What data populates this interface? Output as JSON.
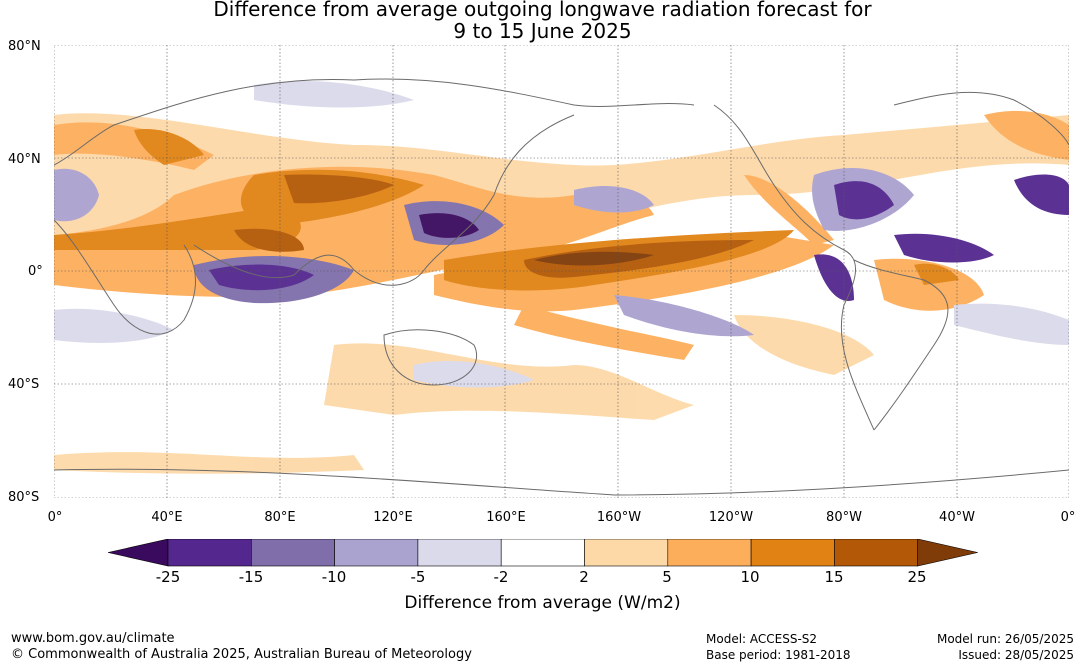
{
  "title": {
    "line1": "Difference from average outgoing longwave radiation forecast for",
    "line2": "9 to 15 June 2025"
  },
  "lat_labels": [
    "80°N",
    "40°N",
    "0°",
    "40°S",
    "80°S"
  ],
  "lon_labels": [
    "0°",
    "40°E",
    "80°E",
    "120°E",
    "160°E",
    "160°W",
    "120°W",
    "80°W",
    "40°W",
    "0°"
  ],
  "colorbar": {
    "ticks": [
      "-25",
      "-15",
      "-10",
      "-5",
      "-2",
      "2",
      "5",
      "10",
      "15",
      "25"
    ],
    "colors": [
      "#3a0a5e",
      "#54278f",
      "#7f6eaa",
      "#aaa2cf",
      "#dadaeb",
      "#ffffff",
      "#fdd9a8",
      "#fdae5b",
      "#e08214",
      "#b35806",
      "#7f3b08"
    ],
    "label": "Difference from average (W/m2)"
  },
  "footer": {
    "website": "www.bom.gov.au/climate",
    "copyright": "© Commonwealth of Australia 2025, Australian Bureau of Meteorology",
    "model": "Model: ACCESS-S2",
    "base_period": "Base period: 1981-2018",
    "model_run": "Model run: 26/05/2025",
    "issued": "Issued: 28/05/2025"
  }
}
